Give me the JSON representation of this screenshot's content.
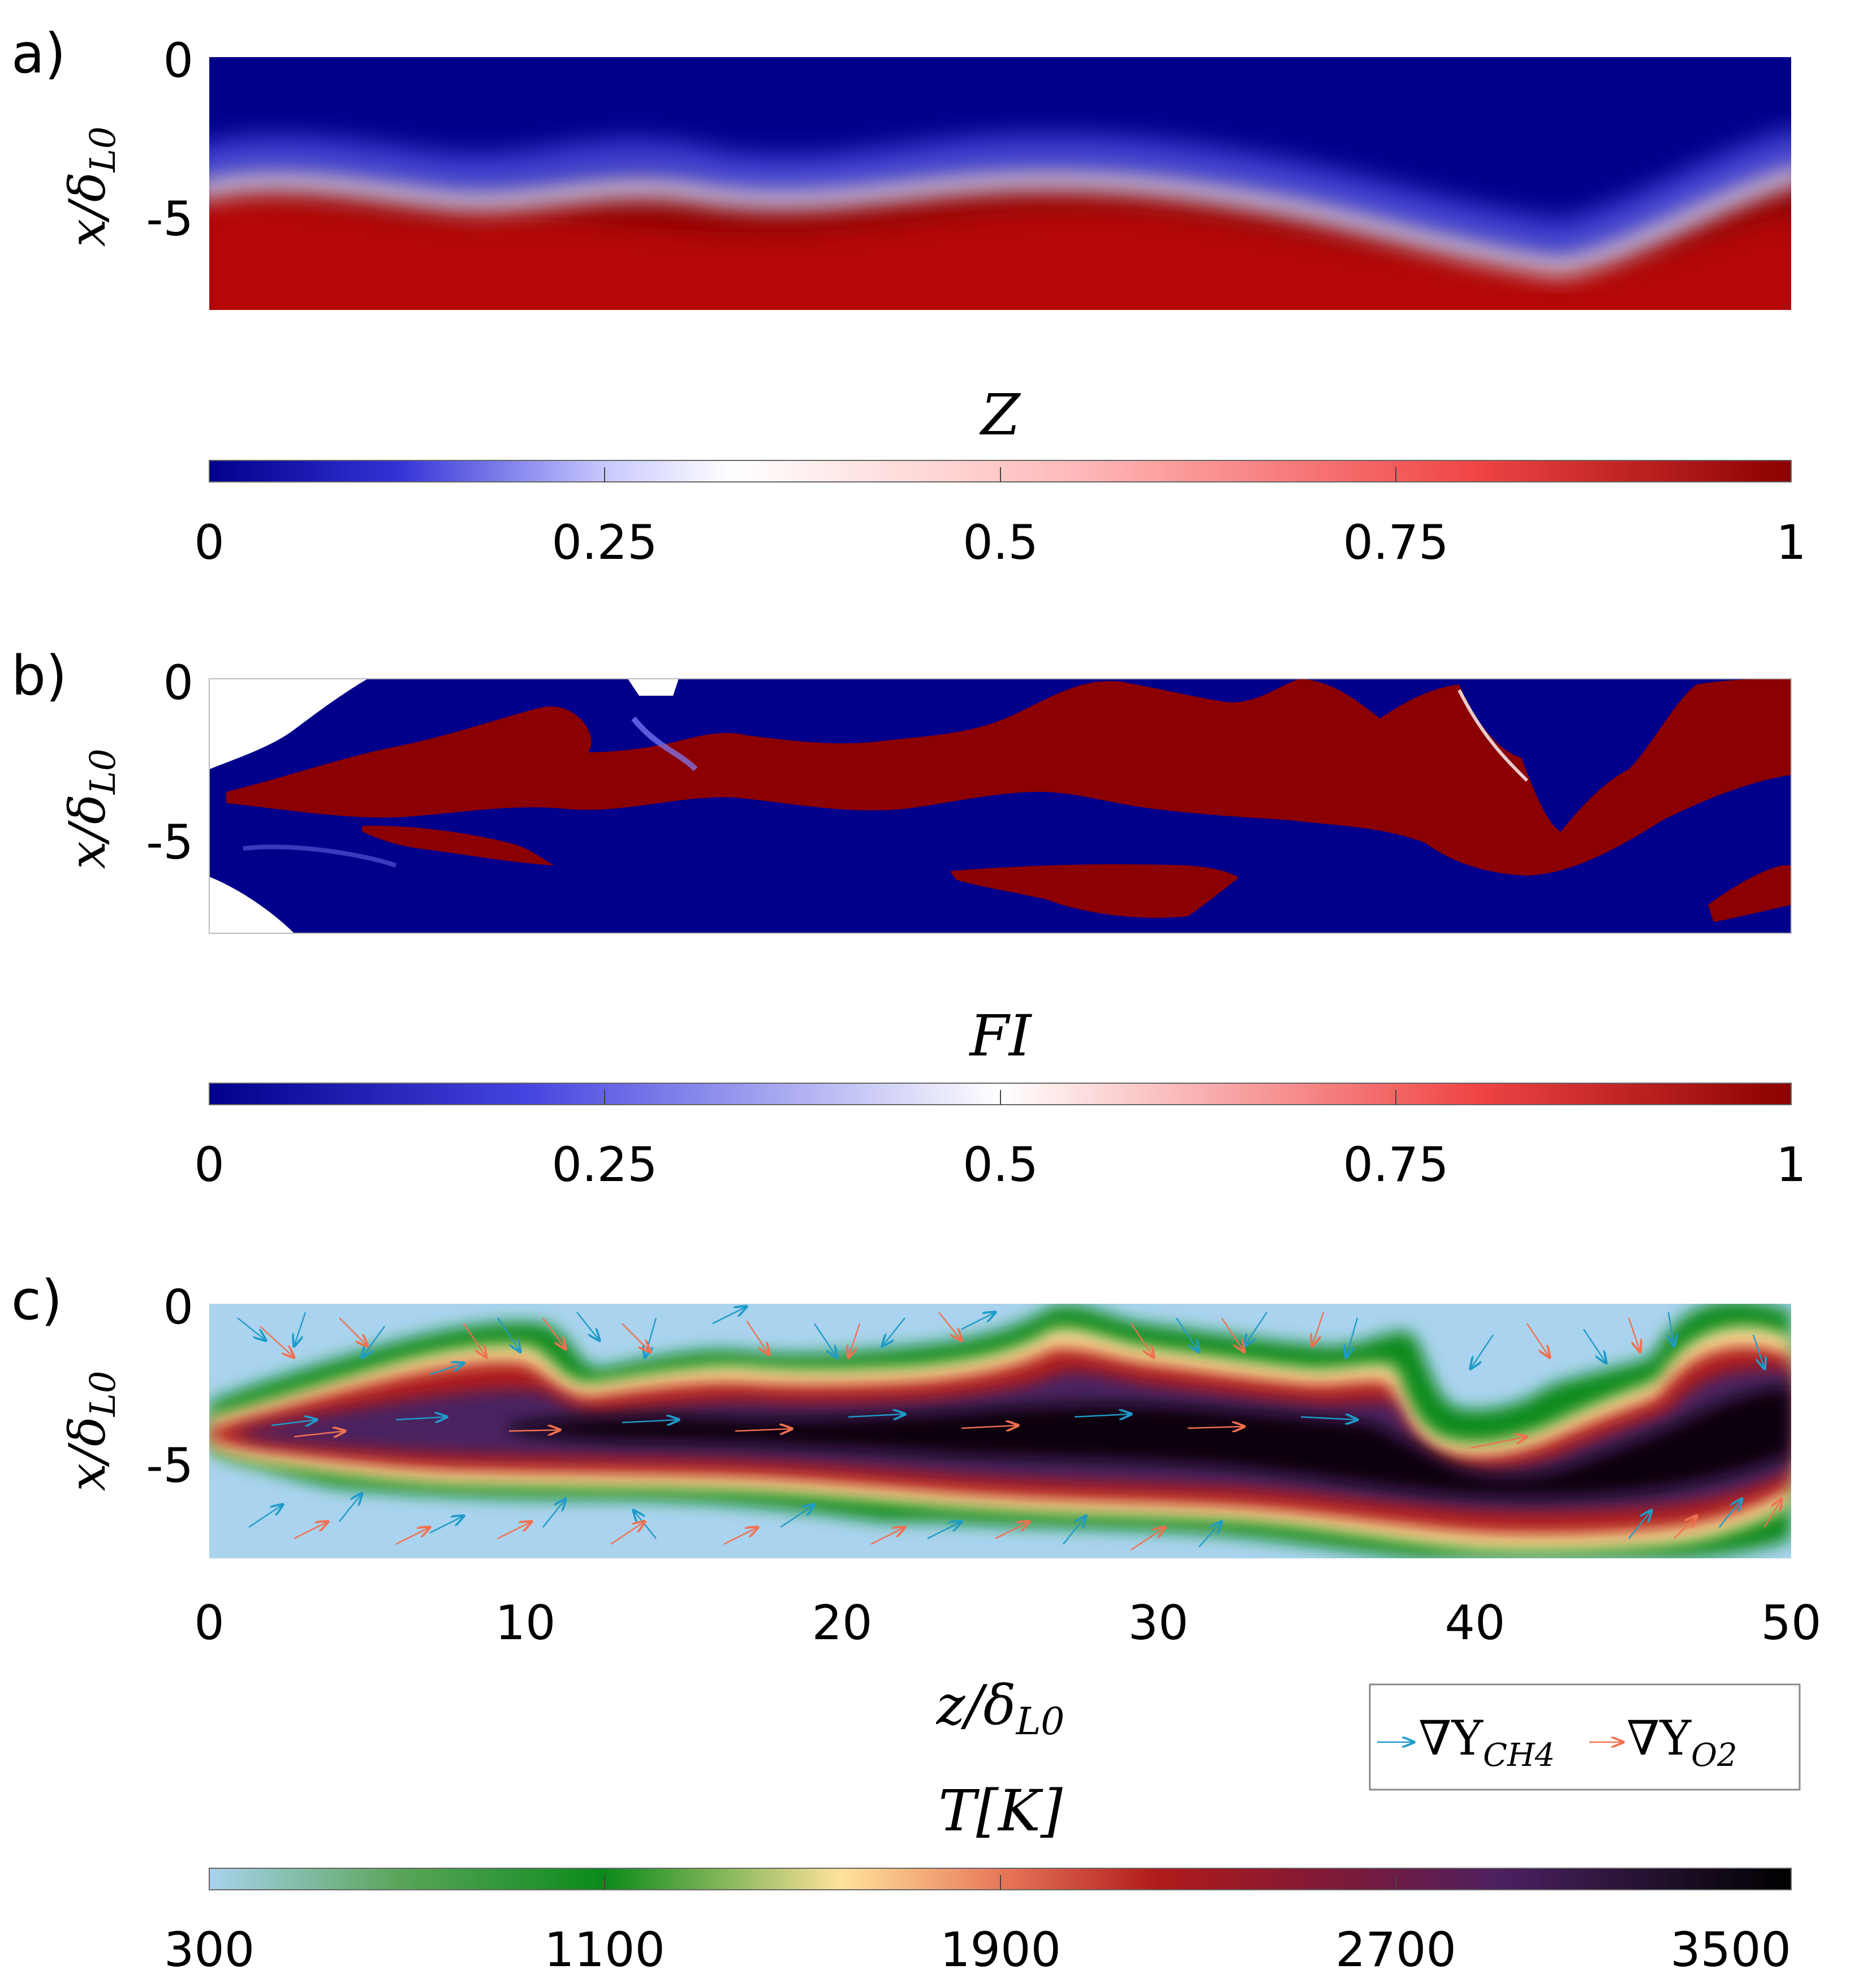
{
  "chart_data": [
    {
      "type": "heatmap",
      "panel_label": "a)",
      "field": "Z",
      "ylabel": "x/δL0",
      "yticks": [
        "0",
        "-5"
      ],
      "ylim": [
        -8,
        0
      ],
      "xlim": [
        0,
        50
      ],
      "colorbar": {
        "label": "Z",
        "ticks": [
          "0",
          "0.25",
          "0.5",
          "0.75",
          "1"
        ],
        "range": [
          0,
          1
        ],
        "colors": [
          "#00008b",
          "#ffffff",
          "#8b0000"
        ]
      }
    },
    {
      "type": "heatmap",
      "panel_label": "b)",
      "field": "FI",
      "ylabel": "x/δL0",
      "yticks": [
        "0",
        "-5"
      ],
      "ylim": [
        -8,
        0
      ],
      "xlim": [
        0,
        50
      ],
      "colorbar": {
        "label": "FI",
        "ticks": [
          "0",
          "0.25",
          "0.5",
          "0.75",
          "1"
        ],
        "range": [
          0,
          1
        ],
        "colors": [
          "#00008b",
          "#ffffff",
          "#8b0000"
        ]
      }
    },
    {
      "type": "heatmap",
      "panel_label": "c)",
      "field": "T[K]",
      "ylabel": "x/δL0",
      "xlabel": "z/δL0",
      "yticks": [
        "0",
        "-5"
      ],
      "xticks": [
        "0",
        "10",
        "20",
        "30",
        "40",
        "50"
      ],
      "ylim": [
        -8,
        0
      ],
      "xlim": [
        0,
        50
      ],
      "legend": {
        "position": "bottom-right",
        "entries": [
          {
            "name": "∇Y",
            "sub": "CH4",
            "color": "#1f9bc9"
          },
          {
            "name": "∇Y",
            "sub": "O2",
            "color": "#f2704f"
          }
        ]
      },
      "colorbar": {
        "label": "T[K]",
        "ticks": [
          "300",
          "1100",
          "1900",
          "2700",
          "3500"
        ],
        "range": [
          300,
          3500
        ],
        "colors": [
          "#a9d3ee",
          "#0a8a1a",
          "#ffe39a",
          "#8b1a1a",
          "#4a1a4a",
          "#000000"
        ]
      }
    }
  ]
}
